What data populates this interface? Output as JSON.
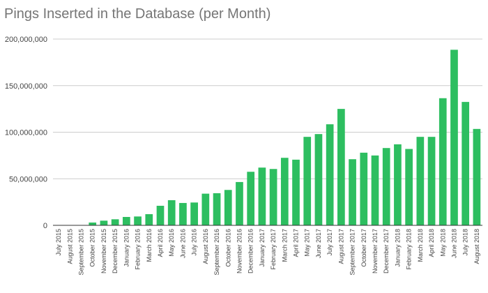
{
  "chart_data": {
    "type": "bar",
    "title": "Pings Inserted in the Database (per Month)",
    "xlabel": "",
    "ylabel": "",
    "ylim": [
      0,
      200000000
    ],
    "yticks": [
      0,
      50000000,
      100000000,
      150000000,
      200000000
    ],
    "ytick_labels": [
      "0",
      "50,000,000",
      "100,000,000",
      "150,000,000",
      "200,000,000"
    ],
    "grid": true,
    "legend": "none",
    "bar_color": "#2DBE60",
    "categories": [
      "July 2015",
      "August 2015",
      "September 2015",
      "October 2015",
      "November 2015",
      "December 2015",
      "January 2016",
      "February 2016",
      "March 2016",
      "April 2016",
      "May 2016",
      "June 2016",
      "July 2016",
      "August 2016",
      "September 2016",
      "October 2016",
      "November 2016",
      "December 2016",
      "January 2017",
      "February 2017",
      "March 2017",
      "April 2017",
      "May 2017",
      "June 2017",
      "July 2017",
      "August 2017",
      "September 2017",
      "October 2017",
      "November 2017",
      "December 2017",
      "January 2018",
      "February 2018",
      "March 2018",
      "April 2018",
      "May 2018",
      "June 2018",
      "July 2018",
      "August 2018"
    ],
    "values": [
      0,
      0,
      0,
      3000000,
      5000000,
      6500000,
      9000000,
      9500000,
      12000000,
      21000000,
      27000000,
      24000000,
      24500000,
      34000000,
      34500000,
      38000000,
      46500000,
      57500000,
      62000000,
      60500000,
      72500000,
      70500000,
      95000000,
      98000000,
      108500000,
      125000000,
      71000000,
      78000000,
      75000000,
      83000000,
      87000000,
      82000000,
      95000000,
      95000000,
      136500000,
      188500000,
      132500000,
      103500000
    ]
  }
}
